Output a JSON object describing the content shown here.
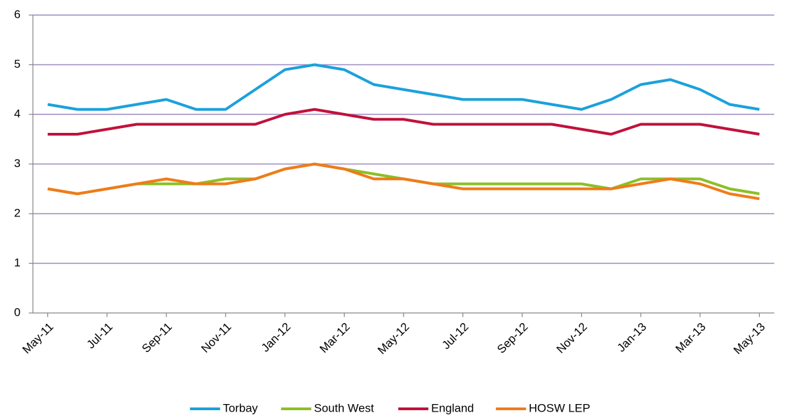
{
  "chart_data": {
    "type": "line",
    "categories": [
      "May-11",
      null,
      "Jul-11",
      null,
      "Sep-11",
      null,
      "Nov-11",
      null,
      "Jan-12",
      null,
      "Mar-12",
      null,
      "May-12",
      null,
      "Jul-12",
      null,
      "Sep-12",
      null,
      "Nov-12",
      null,
      "Jan-13",
      null,
      "Mar-13",
      null,
      "May-13"
    ],
    "series": [
      {
        "name": "Torbay",
        "color": "#1ba1dc",
        "values": [
          4.2,
          4.1,
          4.1,
          4.2,
          4.3,
          4.1,
          4.1,
          4.5,
          4.9,
          5.0,
          4.9,
          4.6,
          4.5,
          4.4,
          4.3,
          4.3,
          4.3,
          4.2,
          4.1,
          4.3,
          4.6,
          4.7,
          4.5,
          4.2,
          4.1
        ]
      },
      {
        "name": "South West",
        "color": "#8cbf26",
        "values": [
          2.5,
          2.4,
          2.5,
          2.6,
          2.6,
          2.6,
          2.7,
          2.7,
          2.9,
          3.0,
          2.9,
          2.8,
          2.7,
          2.6,
          2.6,
          2.6,
          2.6,
          2.6,
          2.6,
          2.5,
          2.7,
          2.7,
          2.7,
          2.5,
          2.4
        ]
      },
      {
        "name": "England",
        "color": "#c0113c",
        "values": [
          3.6,
          3.6,
          3.7,
          3.8,
          3.8,
          3.8,
          3.8,
          3.8,
          4.0,
          4.1,
          4.0,
          3.9,
          3.9,
          3.8,
          3.8,
          3.8,
          3.8,
          3.8,
          3.7,
          3.6,
          3.8,
          3.8,
          3.8,
          3.7,
          3.6
        ]
      },
      {
        "name": "HOSW LEP",
        "color": "#f07b1a",
        "values": [
          2.5,
          2.4,
          2.5,
          2.6,
          2.7,
          2.6,
          2.6,
          2.7,
          2.9,
          3.0,
          2.9,
          2.7,
          2.7,
          2.6,
          2.5,
          2.5,
          2.5,
          2.5,
          2.5,
          2.5,
          2.6,
          2.7,
          2.6,
          2.4,
          2.3
        ]
      }
    ],
    "ylim": [
      0,
      6
    ],
    "yticks": [
      0,
      1,
      2,
      3,
      4,
      5,
      6
    ],
    "grid": true,
    "legend": "bottom"
  }
}
